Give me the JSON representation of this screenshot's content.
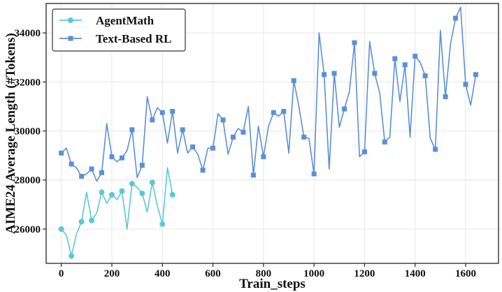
{
  "chart_data": {
    "type": "line",
    "xlabel": "Train_steps",
    "ylabel": "AIME24 Average Length (#Tokens)",
    "xlim": [
      -60,
      1730
    ],
    "ylim": [
      24600,
      35200
    ],
    "xticks": [
      0,
      200,
      400,
      600,
      800,
      1000,
      1200,
      1400,
      1600
    ],
    "yticks": [
      26000,
      28000,
      30000,
      32000,
      34000
    ],
    "grid": true,
    "legend": "top-left",
    "series": [
      {
        "name": "AgentMath",
        "color": "#5ac8d6",
        "marker": "circle",
        "x": [
          0,
          20,
          40,
          60,
          80,
          100,
          120,
          140,
          160,
          180,
          200,
          220,
          240,
          260,
          280,
          300,
          320,
          340,
          360,
          380,
          400,
          420,
          440
        ],
        "y": [
          26000,
          25750,
          24900,
          25800,
          26300,
          27500,
          26350,
          26650,
          27500,
          27050,
          27400,
          27200,
          27550,
          26000,
          27850,
          27700,
          27450,
          26700,
          27900,
          26950,
          26200,
          28500,
          27400
        ],
        "markers": [
          0,
          40,
          80,
          120,
          160,
          200,
          240,
          280,
          320,
          360,
          400,
          440
        ]
      },
      {
        "name": "Text-Based RL",
        "color": "#5b8fd9",
        "marker": "square",
        "x": [
          0,
          20,
          40,
          60,
          80,
          100,
          120,
          140,
          160,
          180,
          200,
          220,
          240,
          260,
          280,
          300,
          320,
          340,
          360,
          380,
          400,
          420,
          440,
          460,
          480,
          500,
          520,
          540,
          560,
          580,
          600,
          620,
          640,
          660,
          680,
          700,
          720,
          740,
          760,
          780,
          800,
          820,
          840,
          860,
          880,
          900,
          920,
          940,
          960,
          980,
          1000,
          1020,
          1040,
          1060,
          1080,
          1100,
          1120,
          1140,
          1160,
          1180,
          1200,
          1220,
          1240,
          1260,
          1280,
          1300,
          1320,
          1340,
          1360,
          1380,
          1400,
          1420,
          1440,
          1460,
          1480,
          1500,
          1520,
          1540,
          1560,
          1580,
          1600,
          1620,
          1640
        ],
        "y": [
          29100,
          29300,
          28650,
          28500,
          28150,
          28250,
          28450,
          27950,
          28300,
          30300,
          28950,
          28750,
          28900,
          29200,
          30050,
          28100,
          28600,
          31400,
          30450,
          30950,
          30750,
          29500,
          30800,
          29100,
          30050,
          29100,
          29350,
          29050,
          28400,
          29300,
          29300,
          30700,
          30450,
          29050,
          29750,
          30100,
          29950,
          31000,
          28200,
          30200,
          28950,
          30200,
          30750,
          30600,
          30800,
          29100,
          32050,
          31000,
          29750,
          29700,
          28250,
          34000,
          32300,
          28450,
          32350,
          30150,
          30900,
          31600,
          33600,
          28950,
          29150,
          33650,
          32350,
          31550,
          29550,
          29750,
          32950,
          31200,
          32700,
          29750,
          33050,
          32800,
          32250,
          29700,
          29250,
          34100,
          31400,
          33550,
          34600,
          35050,
          31900,
          31050,
          32300
        ],
        "markers": [
          0,
          40,
          80,
          120,
          160,
          200,
          240,
          280,
          320,
          360,
          400,
          440,
          480,
          520,
          560,
          600,
          640,
          680,
          720,
          760,
          800,
          840,
          880,
          920,
          960,
          1000,
          1040,
          1080,
          1120,
          1160,
          1200,
          1240,
          1280,
          1320,
          1360,
          1400,
          1440,
          1480,
          1520,
          1560,
          1600,
          1640
        ]
      }
    ]
  }
}
